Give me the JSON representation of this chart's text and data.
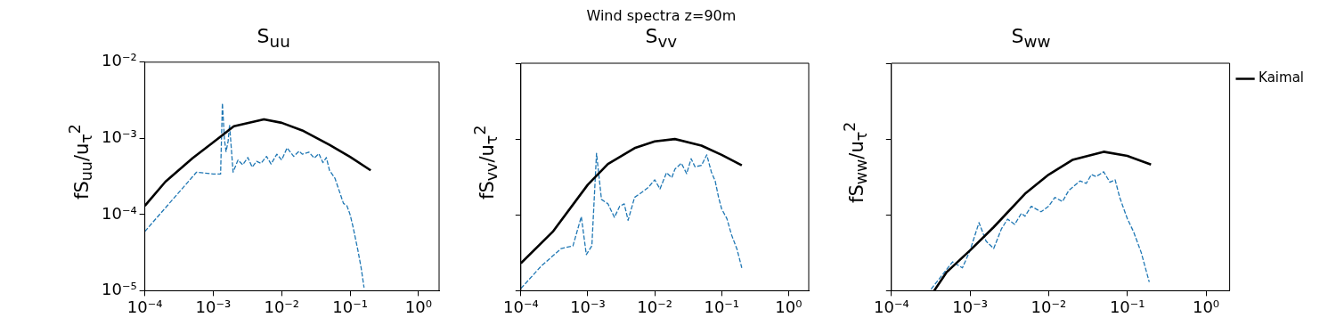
{
  "chart_data": [
    {
      "type": "line",
      "title": "S$_{uu}$",
      "ylabel": "fS$_{uu}$/u$_{τ}$$^{2}$",
      "log": "xy",
      "grid": false,
      "xlim": [
        0.0001,
        2
      ],
      "xticks": [
        {
          "value": 0.0001,
          "label": "10⁻⁴"
        },
        {
          "value": 0.001,
          "label": "10⁻³"
        },
        {
          "value": 0.01,
          "label": "10⁻²"
        },
        {
          "value": 0.1,
          "label": "10⁻¹"
        },
        {
          "value": 1,
          "label": "10⁰"
        }
      ],
      "ylim": [
        1e-05,
        0.01
      ],
      "yticks": [
        {
          "value": 1e-05,
          "label": "10⁻⁵"
        },
        {
          "value": 0.0001,
          "label": "10⁻⁴"
        },
        {
          "value": 0.001,
          "label": "10⁻³"
        },
        {
          "value": 0.01,
          "label": "10⁻²"
        }
      ],
      "series": [
        {
          "color": "#000000",
          "line_style": "solid",
          "x": [
            0.0001,
            0.0002,
            0.0005,
            0.001,
            0.002,
            0.0055,
            0.01,
            0.02,
            0.05,
            0.1,
            0.2
          ],
          "values": [
            0.00013,
            0.00027,
            0.00055,
            0.00089,
            0.00144,
            0.00178,
            0.0016,
            0.00127,
            0.00082,
            0.00057,
            0.00038
          ]
        },
        {
          "color": "#1f77b4",
          "line_style": "dashed",
          "x": [
            0.0001,
            0.00057,
            0.001,
            0.00128,
            0.00136,
            0.00146,
            0.00154,
            0.00165,
            0.00173,
            0.00195,
            0.0023,
            0.0027,
            0.0032,
            0.0037,
            0.0043,
            0.005,
            0.006,
            0.007,
            0.0085,
            0.01,
            0.012,
            0.015,
            0.018,
            0.02,
            0.025,
            0.03,
            0.035,
            0.04,
            0.045,
            0.05,
            0.06,
            0.07,
            0.08,
            0.09,
            0.1,
            0.11,
            0.13,
            0.145,
            0.16
          ],
          "values": [
            6e-05,
            0.00036,
            0.00034,
            0.00034,
            0.0029,
            0.00095,
            0.00067,
            0.00092,
            0.0015,
            0.00036,
            0.00052,
            0.00045,
            0.00056,
            0.00042,
            0.0005,
            0.00047,
            0.00058,
            0.00046,
            0.00062,
            0.00052,
            0.00075,
            0.00058,
            0.00068,
            0.00062,
            0.00066,
            0.00055,
            0.00063,
            0.00048,
            0.00056,
            0.00038,
            0.0003,
            0.0002,
            0.00014,
            0.00013,
            0.0001,
            7e-05,
            3.4e-05,
            2e-05,
            1.1e-05
          ]
        }
      ]
    },
    {
      "type": "line",
      "title": "S$_{vv}$",
      "ylabel": "fS$_{vv}$/u$_{τ}$$^{2}$",
      "log": "xy",
      "grid": false,
      "tick_labels": "x",
      "annotations": [
        "Wind spectra z=90m"
      ],
      "xlim": [
        0.0001,
        2
      ],
      "xticks": [
        {
          "value": 0.0001,
          "label": "10⁻⁴"
        },
        {
          "value": 0.001,
          "label": "10⁻³"
        },
        {
          "value": 0.01,
          "label": "10⁻²"
        },
        {
          "value": 0.1,
          "label": "10⁻¹"
        },
        {
          "value": 1,
          "label": "10⁰"
        }
      ],
      "ylim": [
        1e-05,
        0.01
      ],
      "yticks": [
        {
          "value": 1e-05,
          "label": null
        },
        {
          "value": 0.0001,
          "label": null
        },
        {
          "value": 0.001,
          "label": null
        },
        {
          "value": 0.01,
          "label": null
        }
      ],
      "series": [
        {
          "color": "#000000",
          "line_style": "solid",
          "x": [
            0.0001,
            0.0003,
            0.001,
            0.002,
            0.005,
            0.01,
            0.02,
            0.05,
            0.1,
            0.2
          ],
          "values": [
            2.3e-05,
            6e-05,
            0.00025,
            0.00047,
            0.00076,
            0.00093,
            0.001,
            0.00082,
            0.00062,
            0.00045
          ]
        },
        {
          "color": "#1f77b4",
          "line_style": "dashed",
          "x": [
            0.0001,
            0.0002,
            0.0004,
            0.0006,
            0.0008,
            0.00095,
            0.00115,
            0.00135,
            0.0016,
            0.002,
            0.0025,
            0.003,
            0.0035,
            0.004,
            0.005,
            0.006,
            0.008,
            0.01,
            0.012,
            0.015,
            0.018,
            0.02,
            0.025,
            0.03,
            0.035,
            0.04,
            0.05,
            0.06,
            0.07,
            0.08,
            0.09,
            0.1,
            0.12,
            0.14,
            0.17,
            0.2
          ],
          "values": [
            1.07e-05,
            2.1e-05,
            3.6e-05,
            3.9e-05,
            9.5e-05,
            3e-05,
            3.9e-05,
            0.00065,
            0.00016,
            0.00014,
            9.3e-05,
            0.00013,
            0.00014,
            8.5e-05,
            0.00017,
            0.00019,
            0.00023,
            0.00029,
            0.00022,
            0.00036,
            0.00031,
            0.0004,
            0.00048,
            0.00035,
            0.00055,
            0.00043,
            0.00045,
            0.00062,
            0.00037,
            0.00028,
            0.00017,
            0.00012,
            8.9e-05,
            5.5e-05,
            3.5e-05,
            2e-05
          ]
        }
      ]
    },
    {
      "type": "line",
      "title": "S$_{ww}$",
      "ylabel": "fS$_{ww}$/u$_{τ}$$^{2}$",
      "log": "xy",
      "grid": false,
      "tick_labels": "x",
      "legend": "right",
      "xlim": [
        0.0001,
        2
      ],
      "xticks": [
        {
          "value": 0.0001,
          "label": "10⁻⁴"
        },
        {
          "value": 0.001,
          "label": "10⁻³"
        },
        {
          "value": 0.01,
          "label": "10⁻²"
        },
        {
          "value": 0.1,
          "label": "10⁻¹"
        },
        {
          "value": 1,
          "label": "10⁰"
        }
      ],
      "ylim": [
        1e-05,
        0.01
      ],
      "yticks": [
        {
          "value": 1e-05,
          "label": null
        },
        {
          "value": 0.0001,
          "label": null
        },
        {
          "value": 0.001,
          "label": null
        },
        {
          "value": 0.01,
          "label": null
        }
      ],
      "series": [
        {
          "name": "Kaimal",
          "color": "#000000",
          "line_style": "solid",
          "x": [
            0.00035,
            0.0005,
            0.001,
            0.002,
            0.005,
            0.01,
            0.02,
            0.05,
            0.1,
            0.2
          ],
          "values": [
            1e-05,
            1.74e-05,
            3.4e-05,
            6.9e-05,
            0.00019,
            0.00034,
            0.00053,
            0.00068,
            0.0006,
            0.00046
          ]
        },
        {
          "color": "#1f77b4",
          "line_style": "dashed",
          "x": [
            0.00032,
            0.0006,
            0.0008,
            0.001,
            0.0013,
            0.0016,
            0.002,
            0.0025,
            0.003,
            0.0037,
            0.0045,
            0.005,
            0.006,
            0.008,
            0.01,
            0.012,
            0.015,
            0.018,
            0.02,
            0.025,
            0.03,
            0.035,
            0.04,
            0.05,
            0.06,
            0.07,
            0.08,
            0.1,
            0.12,
            0.15,
            0.19
          ],
          "values": [
            1.05e-05,
            2.4e-05,
            2e-05,
            3.4e-05,
            7.9e-05,
            4.5e-05,
            3.6e-05,
            6.5e-05,
            8.8e-05,
            7.5e-05,
            0.000105,
            9.6e-05,
            0.00013,
            0.00011,
            0.00013,
            0.00017,
            0.00015,
            0.00021,
            0.00023,
            0.00028,
            0.00026,
            0.00034,
            0.00032,
            0.00037,
            0.00027,
            0.00029,
            0.00017,
            8.9e-05,
            6e-05,
            3.2e-05,
            1.3e-05
          ]
        }
      ]
    }
  ]
}
